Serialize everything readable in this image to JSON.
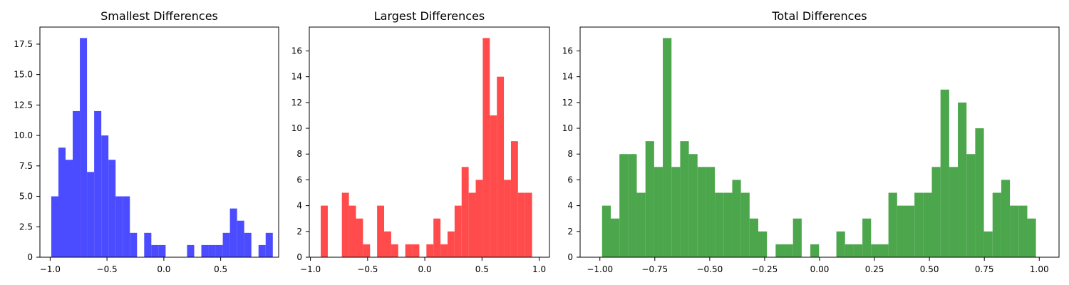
{
  "chart_data": [
    {
      "type": "histogram",
      "title": "Smallest Differences",
      "color": "#4b4bff",
      "xlim": [
        -1.09,
        1.01
      ],
      "ylim": [
        0,
        18.9
      ],
      "xticks": [
        -1.0,
        -0.5,
        0.0,
        0.5
      ],
      "xtick_labels": [
        "−1.0",
        "−0.5",
        "0.0",
        "0.5"
      ],
      "yticks": [
        0,
        2.5,
        5.0,
        7.5,
        10.0,
        12.5,
        15.0,
        17.5
      ],
      "ytick_labels": [
        "0",
        "2.5",
        "5.0",
        "7.5",
        "10.0",
        "12.5",
        "15.0",
        "17.5"
      ],
      "bin_start": -0.99,
      "bin_width": 0.062857,
      "counts": [
        5,
        9,
        8,
        12,
        18,
        7,
        12,
        10,
        8,
        5,
        5,
        2,
        0,
        2,
        1,
        1,
        0,
        0,
        0,
        1,
        0,
        1,
        1,
        1,
        2,
        4,
        3,
        2,
        0,
        1,
        2
      ]
    },
    {
      "type": "histogram",
      "title": "Largest Differences",
      "color": "#ff4b4b",
      "xlim": [
        -1.01,
        1.09
      ],
      "ylim": [
        0,
        17.85
      ],
      "xticks": [
        -1.0,
        -0.5,
        0.0,
        0.5,
        1.0
      ],
      "xtick_labels": [
        "−1.0",
        "−0.5",
        "0.0",
        "0.5",
        "1.0"
      ],
      "yticks": [
        0,
        2,
        4,
        6,
        8,
        10,
        12,
        14,
        16
      ],
      "ytick_labels": [
        "0",
        "2",
        "4",
        "6",
        "8",
        "10",
        "12",
        "14",
        "16"
      ],
      "bin_start": -0.91,
      "bin_width": 0.0616,
      "counts": [
        4,
        0,
        0,
        5,
        4,
        3,
        1,
        0,
        4,
        2,
        1,
        0,
        1,
        1,
        0,
        1,
        3,
        1,
        2,
        4,
        7,
        5,
        6,
        17,
        11,
        14,
        6,
        9,
        5,
        5
      ]
    },
    {
      "type": "histogram",
      "title": "Total Differences",
      "color": "#4ca64c",
      "xlim": [
        -1.09,
        1.09
      ],
      "ylim": [
        0,
        17.85
      ],
      "xticks": [
        -1.0,
        -0.75,
        -0.5,
        -0.25,
        0.0,
        0.25,
        0.5,
        0.75,
        1.0
      ],
      "xtick_labels": [
        "−1.00",
        "−0.75",
        "−0.50",
        "−0.25",
        "0.00",
        "0.25",
        "0.50",
        "0.75",
        "1.00"
      ],
      "yticks": [
        0,
        2,
        4,
        6,
        8,
        10,
        12,
        14,
        16
      ],
      "ytick_labels": [
        "0",
        "2",
        "4",
        "6",
        "8",
        "10",
        "12",
        "14",
        "16"
      ],
      "bin_start": -0.99,
      "bin_width": 0.0395,
      "counts": [
        4,
        3,
        8,
        8,
        5,
        9,
        7,
        17,
        7,
        9,
        8,
        7,
        7,
        5,
        5,
        6,
        5,
        3,
        2,
        0,
        1,
        1,
        3,
        0,
        1,
        0,
        0,
        2,
        1,
        1,
        3,
        1,
        1,
        5,
        4,
        4,
        5,
        5,
        7,
        13,
        7,
        12,
        8,
        10,
        2,
        5,
        6,
        4,
        4,
        3
      ]
    }
  ]
}
